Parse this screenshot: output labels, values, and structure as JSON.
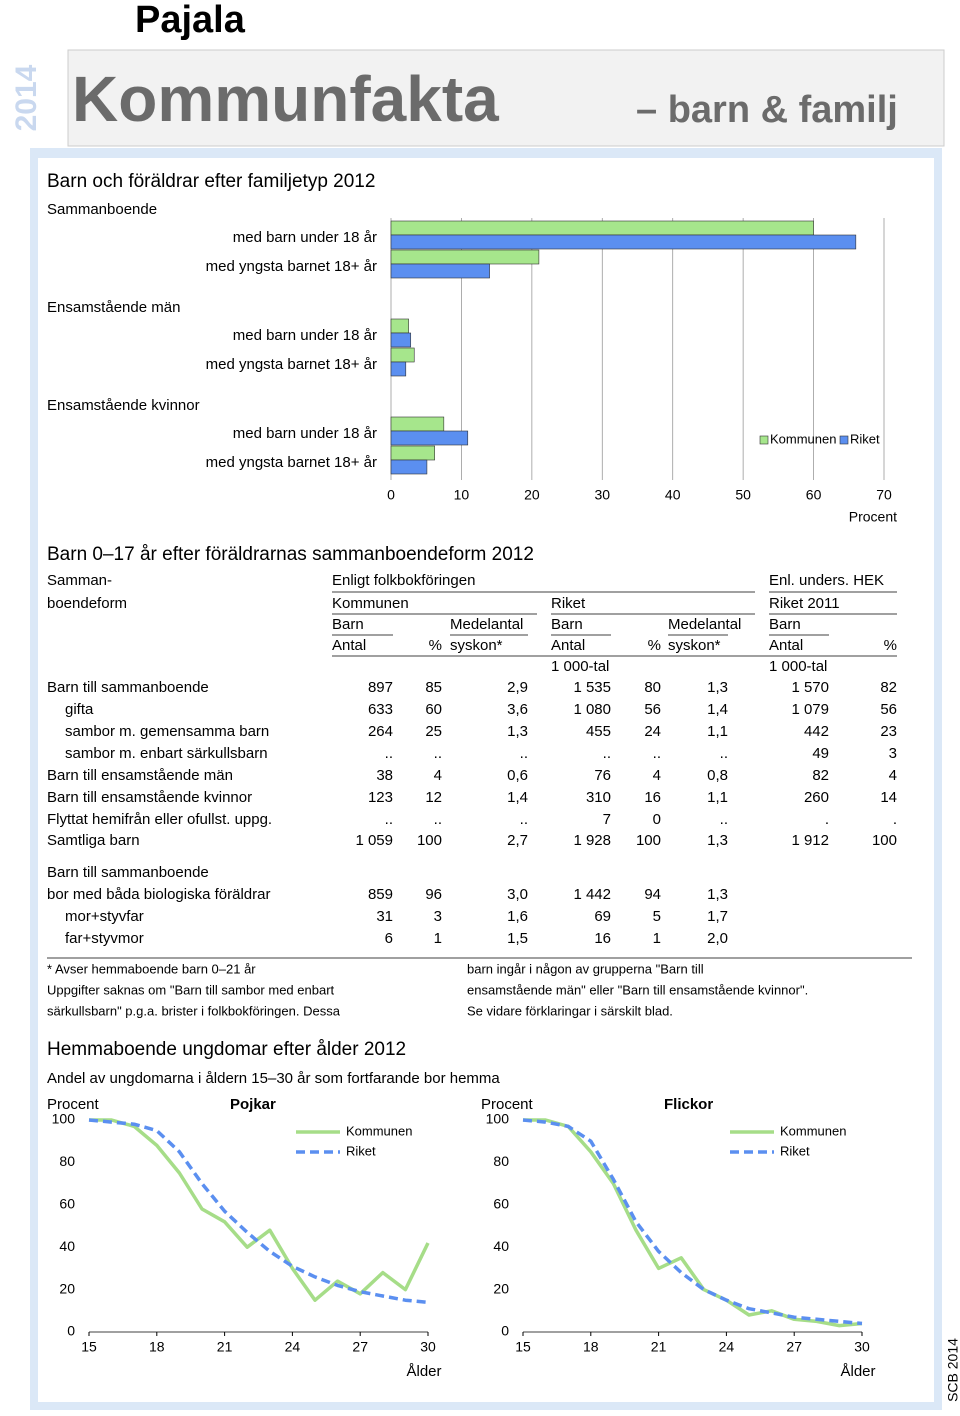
{
  "header": {
    "year": "2014",
    "title": "Pajala",
    "banner": "Kommunfakta",
    "banner_sub": "– barn & familj"
  },
  "chart_data": [
    {
      "type": "bar",
      "orientation": "horizontal",
      "title": "Barn och föräldrar efter familjetyp 2012",
      "xlabel": "Procent",
      "groups": [
        "Sammanboende",
        "Ensamstående män",
        "Ensamstående kvinnor"
      ],
      "categories": [
        "med barn under 18 år",
        "med yngsta barnet 18+ år"
      ],
      "series": [
        {
          "name": "Kommunen",
          "color": "#a6e68c",
          "values": [
            [
              60,
              21
            ],
            [
              2.5,
              3.3
            ],
            [
              7.5,
              6.2
            ]
          ]
        },
        {
          "name": "Riket",
          "color": "#5b8ff0",
          "values": [
            [
              66,
              14
            ],
            [
              2.8,
              2.1
            ],
            [
              10.9,
              5.1
            ]
          ]
        }
      ],
      "xlim": [
        0,
        70
      ],
      "xticks": [
        0,
        10,
        20,
        30,
        40,
        50,
        60,
        70
      ],
      "grid": true,
      "legend": "right"
    },
    {
      "type": "line",
      "title": "Pojkar",
      "ylabel": "Procent",
      "xlabel": "Ålder",
      "x": [
        15,
        16,
        17,
        18,
        19,
        20,
        21,
        22,
        23,
        24,
        25,
        26,
        27,
        28,
        29,
        30
      ],
      "series": [
        {
          "name": "Kommunen",
          "color": "#a6dd88",
          "dashed": false,
          "values": [
            100,
            100,
            97,
            88,
            75,
            58,
            52,
            40,
            48,
            30,
            15,
            24,
            18,
            28,
            20,
            42
          ]
        },
        {
          "name": "Riket",
          "color": "#5b8ff0",
          "dashed": true,
          "values": [
            100,
            99,
            98,
            95,
            85,
            70,
            57,
            47,
            38,
            31,
            26,
            22,
            19,
            17,
            15,
            14
          ]
        }
      ],
      "xlim": [
        15,
        30
      ],
      "xticks": [
        15,
        18,
        21,
        24,
        27,
        30
      ],
      "ylim": [
        0,
        100
      ],
      "yticks": [
        0,
        20,
        40,
        60,
        80,
        100
      ],
      "grid": false
    },
    {
      "type": "line",
      "title": "Flickor",
      "ylabel": "Procent",
      "xlabel": "Ålder",
      "x": [
        15,
        16,
        17,
        18,
        19,
        20,
        21,
        22,
        23,
        24,
        25,
        26,
        27,
        28,
        29,
        30
      ],
      "series": [
        {
          "name": "Kommunen",
          "color": "#a6dd88",
          "dashed": false,
          "values": [
            100,
            100,
            97,
            85,
            70,
            48,
            30,
            35,
            20,
            15,
            8,
            10,
            6,
            5,
            3,
            4
          ]
        },
        {
          "name": "Riket",
          "color": "#5b8ff0",
          "dashed": true,
          "values": [
            100,
            99,
            97,
            90,
            72,
            52,
            38,
            28,
            20,
            15,
            11,
            9,
            7,
            6,
            5,
            4
          ]
        }
      ],
      "xlim": [
        15,
        30
      ],
      "xticks": [
        15,
        18,
        21,
        24,
        27,
        30
      ],
      "ylim": [
        0,
        100
      ],
      "yticks": [
        0,
        20,
        40,
        60,
        80,
        100
      ],
      "grid": false
    }
  ],
  "table": {
    "title": "Barn 0–17 år efter föräldrarnas sammanboendeform 2012",
    "header": [
      "Samman-",
      "boendeform",
      "Enligt folkbokföringen",
      "Enl. unders. HEK",
      "Kommunen",
      "Riket",
      "Riket 2011",
      "Barn",
      "Medelantal",
      "Barn",
      "Medelantal",
      "Barn",
      "Antal",
      "%",
      "syskon*",
      "Antal",
      "%",
      "syskon*",
      "Antal",
      "%",
      "1 000-tal",
      "1 000-tal"
    ],
    "rows": [
      [
        "Barn till sammanboende",
        "897",
        "85",
        "2,9",
        "1 535",
        "80",
        "1,3",
        "1 570",
        "82"
      ],
      [
        "gifta",
        "633",
        "60",
        "3,6",
        "1 080",
        "56",
        "1,4",
        "1 079",
        "56"
      ],
      [
        "sambor m. gemensamma barn",
        "264",
        "25",
        "1,3",
        "455",
        "24",
        "1,1",
        "442",
        "23"
      ],
      [
        "sambor m. enbart särkullsbarn",
        "..",
        "..",
        "..",
        "..",
        "..",
        "..",
        "49",
        "3"
      ],
      [
        "Barn till ensamstående män",
        "38",
        "4",
        "0,6",
        "76",
        "4",
        "0,8",
        "82",
        "4"
      ],
      [
        "Barn till ensamstående kvinnor",
        "123",
        "12",
        "1,4",
        "310",
        "16",
        "1,1",
        "260",
        "14"
      ],
      [
        "Flyttat hemifrån eller ofullst. uppg.",
        "..",
        "..",
        "..",
        "7",
        "0",
        "..",
        ".",
        "."
      ],
      [
        "Samtliga barn",
        "1 059",
        "100",
        "2,7",
        "1 928",
        "100",
        "1,3",
        "1 912",
        "100"
      ],
      [
        "Barn till sammanboende"
      ],
      [
        "bor med båda biologiska föräldrar",
        "859",
        "96",
        "3,0",
        "1 442",
        "94",
        "1,3"
      ],
      [
        "mor+styvfar",
        "31",
        "3",
        "1,6",
        "69",
        "5",
        "1,7"
      ],
      [
        "far+styvmor",
        "6",
        "1",
        "1,5",
        "16",
        "1",
        "2,0"
      ]
    ],
    "notes_left": [
      "* Avser hemmaboende barn 0–21 år",
      "Uppgifter saknas om \"Barn till sambor med enbart",
      "särkullsbarn\" p.g.a. brister i folkbokföringen. Dessa"
    ],
    "notes_right": [
      "barn ingår i någon av grupperna \"Barn till",
      "ensamstående män\" eller \"Barn till ensamstående kvinnor\".",
      "Se vidare förklaringar i särskilt blad."
    ]
  },
  "youth": {
    "title": "Hemmaboende ungdomar efter ålder 2012",
    "subtitle": "Andel av ungdomarna i åldern 15–30 år som fortfarande bor hemma"
  },
  "footer": "SCB 2014"
}
